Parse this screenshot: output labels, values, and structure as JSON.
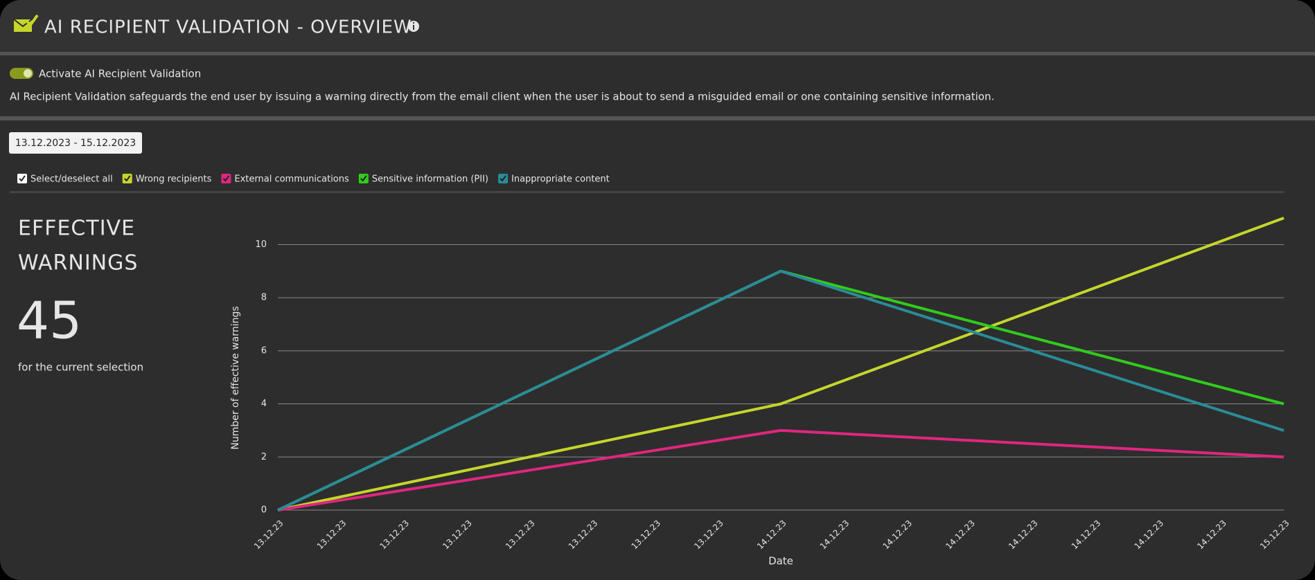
{
  "header": {
    "title": "AI RECIPIENT VALIDATION - OVERVIEW"
  },
  "toggle": {
    "label": "Activate AI Recipient Validation"
  },
  "description": "AI Recipient Validation safeguards the end user by issuing a warning directly from the email client when the user is about to send a misguided email or one containing sensitive information.",
  "date_range": "13.12.2023 - 15.12.2023",
  "select_all": "Select/deselect all",
  "summary": {
    "title_line1": "EFFECTIVE",
    "title_line2": "WARNINGS",
    "value": 45,
    "caption": "for the current selection"
  },
  "chart_data": {
    "type": "line",
    "x": [
      "13.12.23",
      "14.12.23",
      "15.12.23"
    ],
    "xticks": [
      "13.12.23",
      "13.12.23",
      "13.12.23",
      "13.12.23",
      "13.12.23",
      "13.12.23",
      "13.12.23",
      "13.12.23",
      "14.12.23",
      "14.12.23",
      "14.12.23",
      "14.12.23",
      "14.12.23",
      "14.12.23",
      "14.12.23",
      "14.12.23",
      "15.12.23"
    ],
    "xlabel": "Date",
    "ylabel": "Number of effective warnings",
    "ylim": [
      0,
      11
    ],
    "yticks": [
      0,
      2,
      4,
      6,
      8,
      10
    ],
    "grid": true,
    "series": [
      {
        "name": "Wrong recipients",
        "color": "#c5d62b",
        "values": [
          0,
          4,
          11
        ]
      },
      {
        "name": "External communications",
        "color": "#e0267f",
        "values": [
          0,
          3,
          2
        ]
      },
      {
        "name": "Sensitive information (PII)",
        "color": "#2fcc1c",
        "values": [
          0,
          9,
          4
        ]
      },
      {
        "name": "Inappropriate content",
        "color": "#2a8c98",
        "values": [
          0,
          9,
          3
        ]
      }
    ]
  }
}
